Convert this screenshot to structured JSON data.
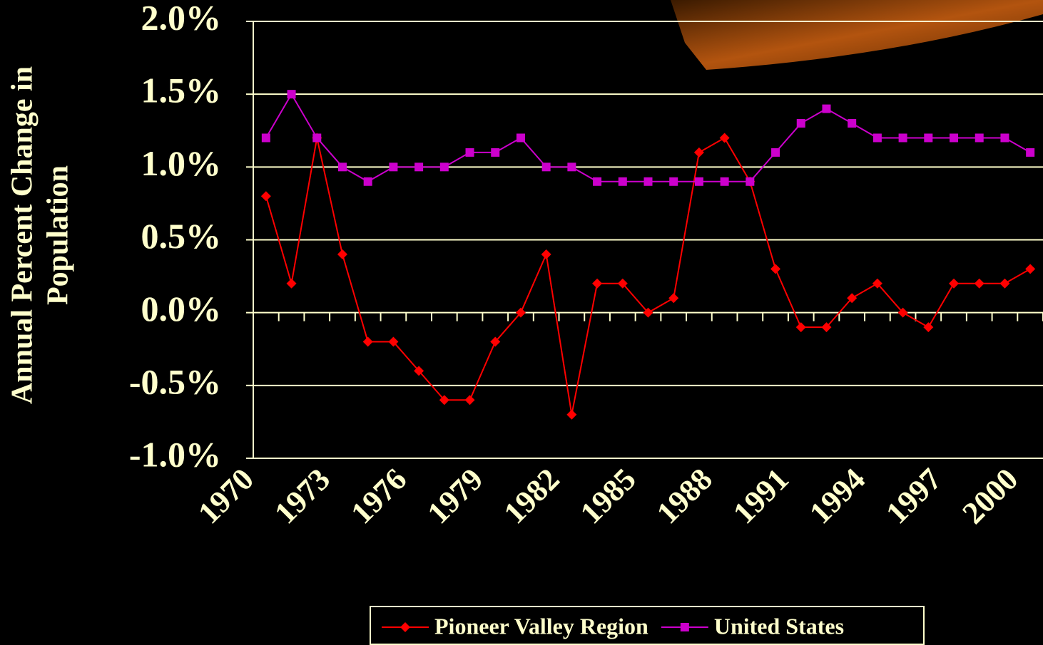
{
  "chart_data": {
    "type": "line",
    "y_label": [
      "Annual Percent Change in",
      "Population"
    ],
    "categories": [
      "1970",
      null,
      null,
      "1973",
      null,
      null,
      "1976",
      null,
      null,
      "1979",
      null,
      null,
      "1982",
      null,
      null,
      "1985",
      null,
      null,
      "1988",
      null,
      null,
      "1991",
      null,
      null,
      "1994",
      null,
      null,
      "1997",
      null,
      null,
      "2000"
    ],
    "series": [
      {
        "name": "Pioneer Valley Region",
        "color": "#ff0000",
        "marker": "diamond",
        "values": [
          0.8,
          0.2,
          1.2,
          0.4,
          -0.2,
          -0.2,
          -0.4,
          -0.6,
          -0.6,
          -0.2,
          0.0,
          0.4,
          -0.7,
          0.2,
          0.2,
          0.0,
          0.1,
          1.1,
          1.2,
          0.9,
          0.3,
          -0.1,
          -0.1,
          0.1,
          0.2,
          0.0,
          -0.1,
          0.2,
          0.2,
          0.2,
          0.3
        ]
      },
      {
        "name": "United States",
        "color": "#cc00cc",
        "marker": "square",
        "values": [
          1.2,
          1.5,
          1.2,
          1.0,
          0.9,
          1.0,
          1.0,
          1.0,
          1.1,
          1.1,
          1.2,
          1.0,
          1.0,
          0.9,
          0.9,
          0.9,
          0.9,
          0.9,
          0.9,
          0.9,
          1.1,
          1.3,
          1.4,
          1.3,
          1.2,
          1.2,
          1.2,
          1.2,
          1.2,
          1.2,
          1.1
        ]
      }
    ],
    "ylim": [
      -1.0,
      2.0
    ],
    "yticks": [
      {
        "value": -1.0,
        "label": "-1.0%"
      },
      {
        "value": -0.5,
        "label": "-0.5%"
      },
      {
        "value": 0.0,
        "label": "0.0%"
      },
      {
        "value": 0.5,
        "label": "0.5%"
      },
      {
        "value": 1.0,
        "label": "1.0%"
      },
      {
        "value": 1.5,
        "label": "1.5%"
      },
      {
        "value": 2.0,
        "label": "2.0%"
      }
    ],
    "grid": true,
    "legend": "bottom"
  }
}
